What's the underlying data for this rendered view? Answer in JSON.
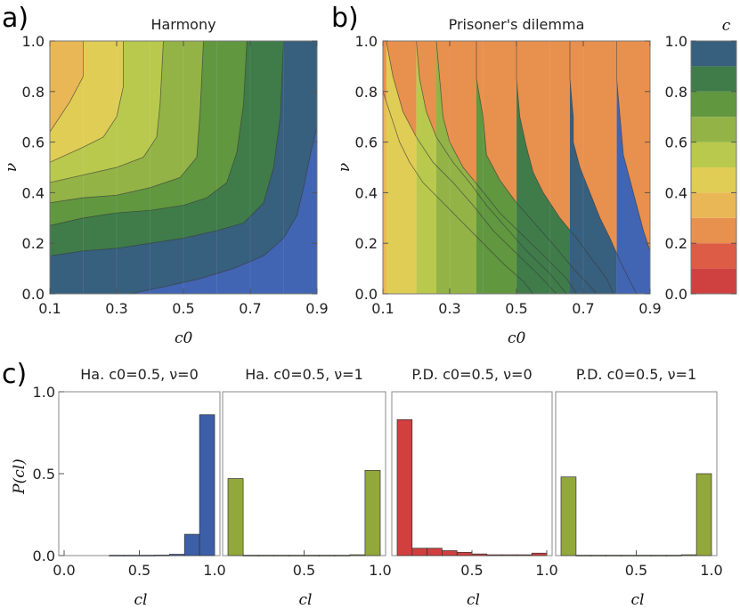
{
  "figure": {
    "panel_labels": [
      "a)",
      "b)",
      "c)"
    ]
  },
  "chart_data": [
    {
      "panel": "a)",
      "type": "heatmap",
      "title": "Harmony",
      "xlabel": "c0",
      "ylabel": "ν",
      "xlim": [
        0.1,
        0.9
      ],
      "ylim": [
        0.0,
        1.0
      ],
      "xticks": [
        "0.1",
        "0.3",
        "0.5",
        "0.7",
        "0.9"
      ],
      "yticks": [
        "0.0",
        "0.2",
        "0.4",
        "0.6",
        "0.8",
        "1.0"
      ],
      "contours": [
        {
          "level": 0.4,
          "points": [
            [
              0.1,
              0.64
            ],
            [
              0.16,
              0.76
            ],
            [
              0.2,
              0.86
            ],
            [
              0.2,
              1.0
            ]
          ]
        },
        {
          "level": 0.5,
          "points": [
            [
              0.1,
              0.52
            ],
            [
              0.2,
              0.58
            ],
            [
              0.26,
              0.62
            ],
            [
              0.3,
              0.7
            ],
            [
              0.32,
              0.82
            ],
            [
              0.32,
              1.0
            ]
          ]
        },
        {
          "level": 0.6,
          "points": [
            [
              0.1,
              0.44
            ],
            [
              0.2,
              0.47
            ],
            [
              0.3,
              0.5
            ],
            [
              0.38,
              0.54
            ],
            [
              0.42,
              0.62
            ],
            [
              0.43,
              0.75
            ],
            [
              0.44,
              1.0
            ]
          ]
        },
        {
          "level": 0.7,
          "points": [
            [
              0.1,
              0.36
            ],
            [
              0.2,
              0.38
            ],
            [
              0.3,
              0.39
            ],
            [
              0.4,
              0.42
            ],
            [
              0.49,
              0.46
            ],
            [
              0.54,
              0.54
            ],
            [
              0.55,
              0.72
            ],
            [
              0.56,
              1.0
            ]
          ]
        },
        {
          "level": 0.8,
          "points": [
            [
              0.1,
              0.27
            ],
            [
              0.2,
              0.3
            ],
            [
              0.3,
              0.32
            ],
            [
              0.4,
              0.33
            ],
            [
              0.5,
              0.35
            ],
            [
              0.57,
              0.38
            ],
            [
              0.63,
              0.44
            ],
            [
              0.66,
              0.56
            ],
            [
              0.68,
              0.75
            ],
            [
              0.69,
              1.0
            ]
          ]
        },
        {
          "level": 0.9,
          "points": [
            [
              0.1,
              0.15
            ],
            [
              0.2,
              0.17
            ],
            [
              0.3,
              0.18
            ],
            [
              0.4,
              0.2
            ],
            [
              0.5,
              0.22
            ],
            [
              0.6,
              0.25
            ],
            [
              0.68,
              0.28
            ],
            [
              0.74,
              0.36
            ],
            [
              0.77,
              0.5
            ],
            [
              0.79,
              0.7
            ],
            [
              0.8,
              1.0
            ]
          ]
        },
        {
          "level": 1.0,
          "points": [
            [
              0.34,
              0.0
            ],
            [
              0.45,
              0.03
            ],
            [
              0.55,
              0.06
            ],
            [
              0.65,
              0.1
            ],
            [
              0.74,
              0.15
            ],
            [
              0.8,
              0.22
            ],
            [
              0.84,
              0.31
            ],
            [
              0.86,
              0.42
            ],
            [
              0.88,
              0.55
            ],
            [
              0.9,
              0.66
            ]
          ]
        }
      ]
    },
    {
      "panel": "b)",
      "type": "heatmap",
      "title": "Prisoner's dilemma",
      "xlabel": "c0",
      "ylabel": "ν",
      "xlim": [
        0.1,
        0.9
      ],
      "ylim": [
        0.0,
        1.0
      ],
      "xticks": [
        "0.1",
        "0.3",
        "0.5",
        "0.7",
        "0.9"
      ],
      "yticks": [
        "0.0",
        "0.2",
        "0.4",
        "0.6",
        "0.8",
        "1.0"
      ],
      "contours": [
        {
          "level": 0.3,
          "points": [
            [
              0.1,
              0.8
            ],
            [
              0.12,
              0.72
            ],
            [
              0.15,
              0.6
            ],
            [
              0.18,
              0.52
            ],
            [
              0.22,
              0.44
            ],
            [
              0.28,
              0.36
            ],
            [
              0.34,
              0.28
            ],
            [
              0.4,
              0.2
            ],
            [
              0.46,
              0.12
            ],
            [
              0.52,
              0.05
            ],
            [
              0.55,
              0.0
            ]
          ]
        },
        {
          "level": 0.4,
          "points": [
            [
              0.11,
              1.0
            ],
            [
              0.13,
              0.86
            ],
            [
              0.16,
              0.72
            ],
            [
              0.2,
              0.62
            ],
            [
              0.25,
              0.52
            ],
            [
              0.31,
              0.44
            ],
            [
              0.37,
              0.35
            ],
            [
              0.43,
              0.25
            ],
            [
              0.5,
              0.16
            ],
            [
              0.57,
              0.07
            ],
            [
              0.62,
              0.0
            ]
          ]
        },
        {
          "level": 0.5,
          "points": [
            [
              0.2,
              1.0
            ],
            [
              0.21,
              0.85
            ],
            [
              0.23,
              0.72
            ],
            [
              0.26,
              0.62
            ],
            [
              0.31,
              0.52
            ],
            [
              0.36,
              0.44
            ],
            [
              0.41,
              0.35
            ],
            [
              0.47,
              0.26
            ],
            [
              0.53,
              0.17
            ],
            [
              0.6,
              0.08
            ],
            [
              0.65,
              0.0
            ]
          ]
        },
        {
          "level": 0.6,
          "points": [
            [
              0.26,
              1.0
            ],
            [
              0.27,
              0.85
            ],
            [
              0.28,
              0.7
            ],
            [
              0.3,
              0.6
            ],
            [
              0.34,
              0.5
            ],
            [
              0.39,
              0.42
            ],
            [
              0.45,
              0.32
            ],
            [
              0.52,
              0.23
            ],
            [
              0.59,
              0.14
            ],
            [
              0.65,
              0.06
            ],
            [
              0.68,
              0.0
            ]
          ]
        },
        {
          "level": 0.7,
          "points": [
            [
              0.38,
              1.0
            ],
            [
              0.38,
              0.85
            ],
            [
              0.4,
              0.7
            ],
            [
              0.41,
              0.55
            ],
            [
              0.45,
              0.45
            ],
            [
              0.5,
              0.36
            ],
            [
              0.56,
              0.27
            ],
            [
              0.62,
              0.18
            ],
            [
              0.67,
              0.1
            ],
            [
              0.72,
              0.03
            ],
            [
              0.74,
              0.0
            ]
          ]
        },
        {
          "level": 0.8,
          "points": [
            [
              0.5,
              1.0
            ],
            [
              0.5,
              0.85
            ],
            [
              0.51,
              0.7
            ],
            [
              0.53,
              0.58
            ],
            [
              0.55,
              0.48
            ],
            [
              0.58,
              0.4
            ],
            [
              0.63,
              0.3
            ],
            [
              0.68,
              0.22
            ],
            [
              0.73,
              0.13
            ],
            [
              0.77,
              0.06
            ],
            [
              0.79,
              0.0
            ]
          ]
        },
        {
          "level": 0.9,
          "points": [
            [
              0.66,
              1.0
            ],
            [
              0.66,
              0.85
            ],
            [
              0.67,
              0.7
            ],
            [
              0.67,
              0.6
            ],
            [
              0.69,
              0.5
            ],
            [
              0.72,
              0.4
            ],
            [
              0.75,
              0.3
            ],
            [
              0.78,
              0.22
            ],
            [
              0.81,
              0.13
            ],
            [
              0.84,
              0.05
            ],
            [
              0.86,
              0.0
            ]
          ]
        },
        {
          "level": 1.0,
          "points": [
            [
              0.8,
              1.0
            ],
            [
              0.8,
              0.85
            ],
            [
              0.81,
              0.7
            ],
            [
              0.82,
              0.55
            ],
            [
              0.84,
              0.45
            ],
            [
              0.86,
              0.35
            ],
            [
              0.88,
              0.25
            ],
            [
              0.9,
              0.17
            ]
          ]
        }
      ]
    },
    {
      "panel": "colorbar",
      "type": "heatmap",
      "title": "c",
      "ticks": [
        "0.0",
        "0.2",
        "0.4",
        "0.6",
        "0.8",
        "1.0"
      ],
      "levels": [
        0.0,
        0.1,
        0.2,
        0.3,
        0.4,
        0.5,
        0.6,
        0.7,
        0.8,
        0.9,
        1.0
      ],
      "colors": [
        "#cf4140",
        "#dc5c45",
        "#e8904e",
        "#eab756",
        "#e0cd55",
        "#b9c94d",
        "#93b347",
        "#60973f",
        "#3f7c4a",
        "#375f7e",
        "#4165b3"
      ]
    },
    {
      "panel": "c)",
      "type": "bar",
      "title": "Ha. c0=0.5, ν=0",
      "xlabel": "cl",
      "ylabel": "P(cl)",
      "ylim": [
        0,
        1.0
      ],
      "xticks": [
        "0.0",
        "0.5",
        "1.0"
      ],
      "yticks": [
        "0.0",
        "0.5",
        "1.0"
      ],
      "color": "#3d5fa8",
      "bins": [
        0.05,
        0.15,
        0.25,
        0.35,
        0.45,
        0.55,
        0.65,
        0.75,
        0.85,
        0.95
      ],
      "values": [
        0,
        0,
        0,
        0.002,
        0.002,
        0.002,
        0.003,
        0.008,
        0.13,
        0.86
      ]
    },
    {
      "panel": "c)",
      "type": "bar",
      "title": "Ha. c0=0.5, ν=1",
      "xlabel": "cl",
      "ylim": [
        0,
        1.0
      ],
      "xticks": [
        "0.5",
        "1.0"
      ],
      "color": "#93a83b",
      "bins": [
        0.05,
        0.15,
        0.25,
        0.35,
        0.45,
        0.55,
        0.65,
        0.75,
        0.85,
        0.95
      ],
      "values": [
        0.47,
        0.002,
        0.002,
        0.002,
        0.002,
        0.002,
        0.002,
        0.002,
        0.005,
        0.52
      ]
    },
    {
      "panel": "c)",
      "type": "bar",
      "title": "P.D. c0=0.5, ν=0",
      "xlabel": "cl",
      "ylim": [
        0,
        1.0
      ],
      "xticks": [
        "0.5",
        "1.0"
      ],
      "color": "#d13f3f",
      "bins": [
        0.05,
        0.15,
        0.25,
        0.35,
        0.45,
        0.55,
        0.65,
        0.75,
        0.85,
        0.95
      ],
      "values": [
        0.83,
        0.045,
        0.045,
        0.03,
        0.02,
        0.01,
        0.005,
        0.005,
        0.005,
        0.015
      ]
    },
    {
      "panel": "c)",
      "type": "bar",
      "title": "P.D. c0=0.5, ν=1",
      "xlabel": "cl",
      "ylim": [
        0,
        1.0
      ],
      "xticks": [
        "0.5",
        "1.0"
      ],
      "color": "#93a83b",
      "bins": [
        0.05,
        0.15,
        0.25,
        0.35,
        0.45,
        0.55,
        0.65,
        0.75,
        0.85,
        0.95
      ],
      "values": [
        0.48,
        0.002,
        0.002,
        0.002,
        0.002,
        0.002,
        0.002,
        0.002,
        0.005,
        0.5
      ]
    }
  ]
}
